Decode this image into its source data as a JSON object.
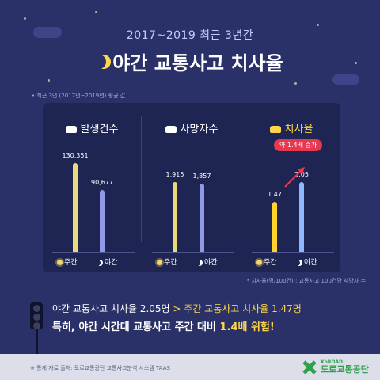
{
  "header": {
    "subtitle": "2017~2019 최근 3년간",
    "title": "야간 교통사고 치사율"
  },
  "note_top": "• 최근 3년 (2017년~2019년) 평균 값",
  "chart_data": [
    {
      "type": "bar",
      "title": "발생건수",
      "categories": [
        "주간",
        "야간"
      ],
      "values": [
        130351,
        90677
      ],
      "value_labels": [
        "130,351",
        "90,677"
      ],
      "colors": [
        "#e8dc7a",
        "#8e9ae6"
      ]
    },
    {
      "type": "bar",
      "title": "사망자수",
      "categories": [
        "주간",
        "야간"
      ],
      "values": [
        1915,
        1857
      ],
      "value_labels": [
        "1,915",
        "1,857"
      ],
      "colors": [
        "#e8dc7a",
        "#8e9ae6"
      ]
    },
    {
      "type": "bar",
      "title": "치사율",
      "categories": [
        "주간",
        "야간"
      ],
      "values": [
        1.47,
        2.05
      ],
      "value_labels": [
        "1.47",
        "2.05"
      ],
      "colors": [
        "#ffd22e",
        "#8fb7ff"
      ],
      "annotation": "약 1.4배 증가"
    }
  ],
  "note_bottom": "* 치사율(명/100건) : 교통사고 100건당 사망자 수",
  "conclusion": {
    "line1_a": "야간 교통사고 치사율 2.05명",
    "line1_b": "> 주간 교통사고 치사율 1.47명",
    "line2_a": "특히, 야간 시간대 교통사고 주간 대비 ",
    "line2_b": "1.4배 위험!"
  },
  "footer": {
    "source": "※ 통계 자료 출처: 도로교통공단 교통사고분석 시스템 TAAS",
    "logo_small": "KoROAD",
    "logo_big": "도로교통공단"
  },
  "colors": {
    "background": "#2a3168",
    "panel": "#1f2553",
    "accent_yellow": "#ffd64a",
    "accent_blue": "#8fb7ff",
    "annotation_red": "#e8384f"
  }
}
